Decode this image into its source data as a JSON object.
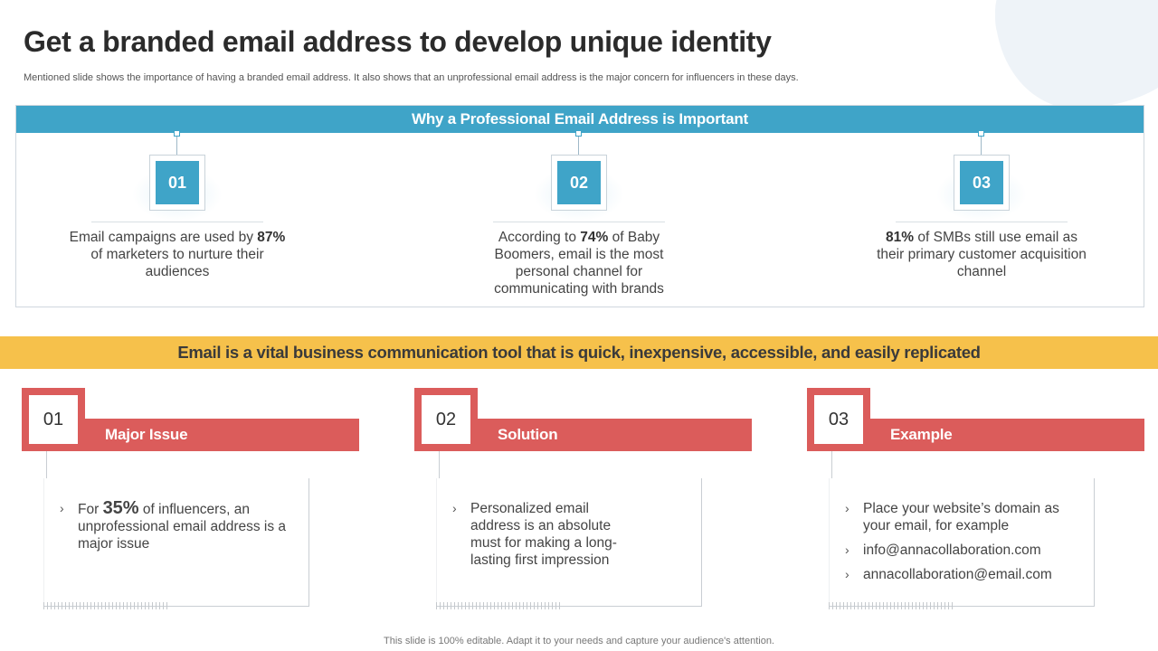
{
  "title": "Get a branded email address to develop unique identity",
  "subtitle": "Mentioned slide shows the importance of having a branded email address. It also shows that an unprofessional email address is the major concern for influencers in these days.",
  "top_panel": {
    "header": "Why a Professional Email Address is Important",
    "points": [
      {
        "num": "01",
        "pre": "Email campaigns are used by ",
        "bold": "87%",
        "post": " of marketers to nurture their audiences"
      },
      {
        "num": "02",
        "pre": "According to ",
        "bold": "74%",
        "post": " of Baby Boomers, email is the most personal channel for communicating with brands"
      },
      {
        "num": "03",
        "pre": "",
        "bold": "81%",
        "post": " of SMBs still use email as their primary customer acquisition channel"
      }
    ]
  },
  "banner": "Email is a vital business communication tool that is quick, inexpensive, accessible, and easily replicated",
  "cards": [
    {
      "num": "01",
      "label": "Major Issue",
      "item1_pre": "For ",
      "item1_big": "35%",
      "item1_post": " of influencers, an unprofessional email address is a major issue"
    },
    {
      "num": "02",
      "label": "Solution",
      "item1": "Personalized email address is an absolute must for making a long-lasting first impression"
    },
    {
      "num": "03",
      "label": "Example",
      "items": [
        "Place your website’s domain as your email, for example",
        "info@annacollaboration.com",
        "annacollaboration@email.com"
      ]
    }
  ],
  "footer": "This slide is 100% editable. Adapt it to your needs and capture your audience's attention.",
  "colors": {
    "blue": "#3fa4c8",
    "yellow": "#f6c14b",
    "red": "#db5c5b"
  }
}
